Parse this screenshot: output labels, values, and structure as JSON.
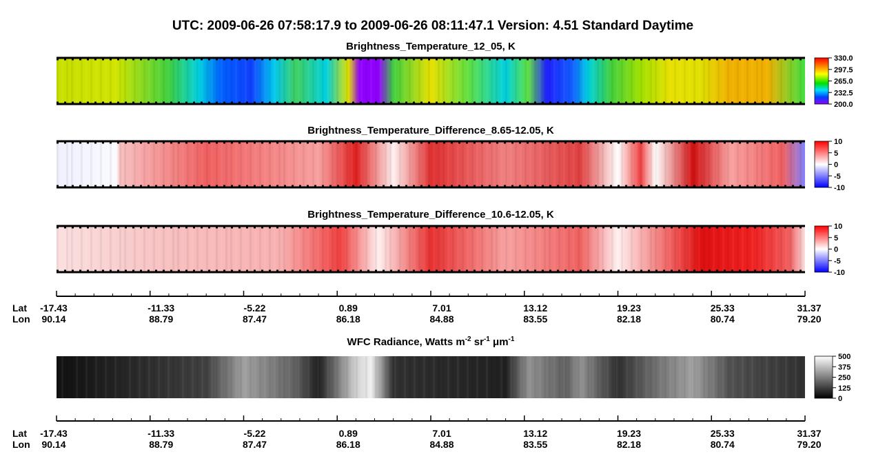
{
  "header": {
    "title": "UTC:  2009-06-26   07:58:17.9  to  2009-06-26   08:11:47.1    Version: 4.51  Standard Daytime"
  },
  "chart_data": [
    {
      "type": "image",
      "title": "Brightness_Temperature_12_05, K",
      "colormap": "rainbow",
      "clim": [
        200,
        330
      ],
      "cticks": [
        {
          "value": 330,
          "label": "330.0"
        },
        {
          "value": 297.5,
          "label": "297.5"
        },
        {
          "value": 265,
          "label": "265.0"
        },
        {
          "value": 232.5,
          "label": "232.5"
        },
        {
          "value": 200,
          "label": "200.0"
        }
      ]
    },
    {
      "type": "image",
      "title": "Brightness_Temperature_Difference_8.65-12.05, K",
      "colormap": "bwr",
      "clim": [
        -10,
        10
      ],
      "cticks": [
        10,
        5,
        0,
        -5,
        -10
      ]
    },
    {
      "type": "image",
      "title": "Brightness_Temperature_Difference_10.6-12.05, K",
      "colormap": "bwr2",
      "clim": [
        -10,
        10
      ],
      "cticks": [
        10,
        5,
        0,
        -5,
        -10
      ]
    },
    {
      "type": "image",
      "title_parts": [
        "WFC Radiance, Watts m",
        "-2",
        " sr",
        "-1",
        " μm",
        "-1"
      ],
      "colormap": "gray",
      "clim": [
        0,
        500
      ],
      "cticks": [
        500,
        375,
        250,
        125,
        0
      ]
    }
  ],
  "axis": {
    "lat_label": "Lat",
    "lon_label": "Lon",
    "lat": [
      "-17.43",
      "-11.33",
      "-5.22",
      "0.89",
      "7.01",
      "13.12",
      "19.23",
      "25.33",
      "31.37"
    ],
    "lon": [
      "90.14",
      "88.79",
      "87.47",
      "86.18",
      "84.88",
      "83.55",
      "82.18",
      "80.74",
      "79.20"
    ]
  }
}
